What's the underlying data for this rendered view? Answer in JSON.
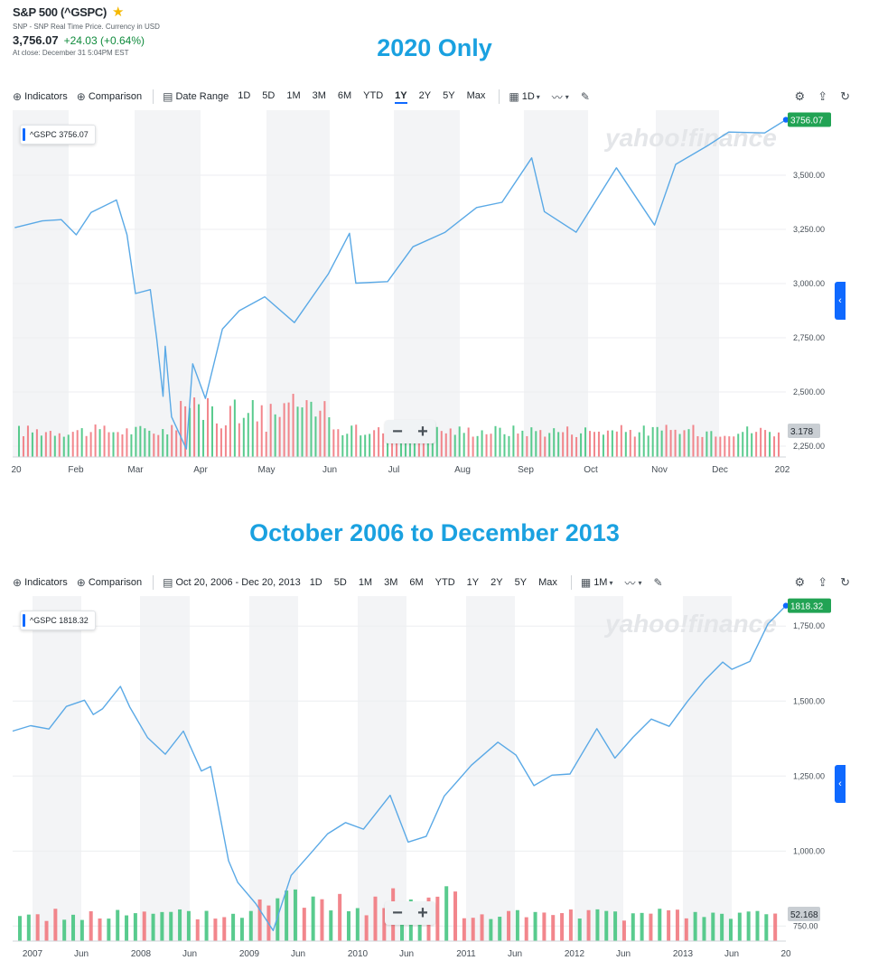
{
  "header": {
    "symbol": "S&P 500 (^GSPC)",
    "source": "SNP - SNP Real Time Price. Currency in USD",
    "price": "3,756.07",
    "change": "+24.03 (+0.64%)",
    "close_note": "At close: December 31 5:04PM EST"
  },
  "colors": {
    "accent": "#1aa1e0",
    "line": "#5aa9e6",
    "up": "#3cc27a",
    "down": "#f07178",
    "badge": "#21a354",
    "shade": "#f3f4f6"
  },
  "top": {
    "section_title": "2020 Only",
    "toolbar": {
      "indicators": "Indicators",
      "comparison": "Comparison",
      "date_label": "Date Range",
      "ranges": [
        "1D",
        "5D",
        "1M",
        "3M",
        "6M",
        "YTD",
        "1Y",
        "2Y",
        "5Y",
        "Max"
      ],
      "active_range": "1Y",
      "interval": "1D"
    },
    "legend": "^GSPC 3756.07",
    "last_price_badge": "3756.07",
    "volume_badge": "3.178",
    "watermark": "yahoo!finance"
  },
  "bottom": {
    "section_title": "October 2006 to December 2013",
    "toolbar": {
      "indicators": "Indicators",
      "comparison": "Comparison",
      "date_label": "Oct 20, 2006 - Dec 20, 2013",
      "ranges": [
        "1D",
        "5D",
        "1M",
        "3M",
        "6M",
        "YTD",
        "1Y",
        "2Y",
        "5Y",
        "Max"
      ],
      "active_range": "",
      "interval": "1M"
    },
    "legend": "^GSPC 1818.32",
    "last_price_badge": "1818.32",
    "volume_badge": "52.168",
    "watermark": "yahoo!finance"
  },
  "chart_data": [
    {
      "type": "line",
      "title": "2020 Only",
      "xlabel": "",
      "ylabel": "",
      "x_ticks": [
        "20",
        "Feb",
        "Mar",
        "Apr",
        "May",
        "Jun",
        "Jul",
        "Aug",
        "Sep",
        "Oct",
        "Nov",
        "Dec",
        "202"
      ],
      "y_ticks": [
        "2,250.00",
        "2,500.00",
        "2,750.00",
        "3,000.00",
        "3,250.00",
        "3,500.00"
      ],
      "ylim": [
        2200,
        3800
      ],
      "x": [
        "2020-01-02",
        "2020-01-15",
        "2020-01-24",
        "2020-01-31",
        "2020-02-07",
        "2020-02-19",
        "2020-02-24",
        "2020-02-28",
        "2020-03-06",
        "2020-03-09",
        "2020-03-12",
        "2020-03-13",
        "2020-03-16",
        "2020-03-23",
        "2020-03-26",
        "2020-04-01",
        "2020-04-09",
        "2020-04-17",
        "2020-04-29",
        "2020-05-13",
        "2020-05-29",
        "2020-06-08",
        "2020-06-11",
        "2020-06-26",
        "2020-07-08",
        "2020-07-23",
        "2020-08-07",
        "2020-08-19",
        "2020-09-02",
        "2020-09-08",
        "2020-09-23",
        "2020-10-12",
        "2020-10-30",
        "2020-11-09",
        "2020-11-24",
        "2020-12-04",
        "2020-12-21",
        "2020-12-31"
      ],
      "series": [
        {
          "values": [
            3258,
            3289,
            3295,
            3225,
            3328,
            3386,
            3225,
            2954,
            2972,
            2746,
            2480,
            2711,
            2386,
            2237,
            2630,
            2470,
            2790,
            2875,
            2939,
            2820,
            3044,
            3232,
            3002,
            3009,
            3170,
            3236,
            3351,
            3375,
            3580,
            3332,
            3237,
            3534,
            3270,
            3550,
            3636,
            3699,
            3695,
            3756
          ]
        }
      ],
      "volume_note": "3.178",
      "grid": true,
      "legend": "top-left"
    },
    {
      "type": "line",
      "title": "October 2006 to December 2013",
      "xlabel": "",
      "ylabel": "",
      "x_ticks": [
        "2007",
        "Jun",
        "2008",
        "Jun",
        "2009",
        "Jun",
        "2010",
        "Jun",
        "2011",
        "Jun",
        "2012",
        "Jun",
        "2013",
        "Jun",
        "20"
      ],
      "y_ticks": [
        "750.00",
        "1,000.00",
        "1,250.00",
        "1,500.00",
        "1,750.00"
      ],
      "ylim": [
        700,
        1850
      ],
      "x": [
        "2006-10",
        "2006-12",
        "2007-02",
        "2007-04",
        "2007-06",
        "2007-07",
        "2007-08",
        "2007-10",
        "2007-11",
        "2008-01",
        "2008-03",
        "2008-05",
        "2008-07",
        "2008-08",
        "2008-10",
        "2008-11",
        "2009-01",
        "2009-03",
        "2009-05",
        "2009-07",
        "2009-09",
        "2009-11",
        "2010-01",
        "2010-04",
        "2010-06",
        "2010-08",
        "2010-10",
        "2011-01",
        "2011-04",
        "2011-06",
        "2011-08",
        "2011-10",
        "2011-12",
        "2012-03",
        "2012-05",
        "2012-07",
        "2012-09",
        "2012-11",
        "2013-01",
        "2013-03",
        "2013-05",
        "2013-06",
        "2013-08",
        "2013-10",
        "2013-12"
      ],
      "series": [
        {
          "values": [
            1400,
            1418,
            1407,
            1482,
            1503,
            1455,
            1474,
            1549,
            1481,
            1378,
            1323,
            1400,
            1267,
            1282,
            968,
            896,
            825,
            735,
            919,
            987,
            1057,
            1095,
            1073,
            1186,
            1030,
            1049,
            1183,
            1286,
            1363,
            1320,
            1218,
            1253,
            1257,
            1408,
            1310,
            1379,
            1440,
            1416,
            1498,
            1569,
            1630,
            1606,
            1632,
            1757,
            1818
          ]
        }
      ],
      "volume_note": "52.168",
      "grid": true,
      "legend": "top-left"
    }
  ]
}
